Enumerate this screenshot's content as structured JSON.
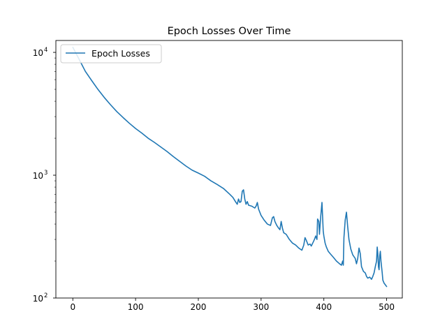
{
  "chart_data": {
    "type": "line",
    "title": "Epoch Losses Over Time",
    "xlabel": "",
    "ylabel": "",
    "xlim": [
      -27,
      525
    ],
    "ylim": [
      100,
      12500
    ],
    "yscale": "log",
    "x_ticks": [
      0,
      100,
      200,
      300,
      400,
      500
    ],
    "y_ticks": [
      {
        "value": 100,
        "base": "10",
        "exp": "2"
      },
      {
        "value": 1000,
        "base": "10",
        "exp": "3"
      },
      {
        "value": 10000,
        "base": "10",
        "exp": "4"
      }
    ],
    "grid": false,
    "legend": {
      "position": "top-left",
      "entries": [
        "Epoch Losses"
      ]
    },
    "colors": {
      "series": "#1f77b4",
      "axes": "#000000",
      "legend_border": "#cccccc"
    },
    "series": [
      {
        "name": "Epoch Losses",
        "points": [
          [
            0,
            11000
          ],
          [
            10,
            8800
          ],
          [
            20,
            7000
          ],
          [
            30,
            5900
          ],
          [
            40,
            5000
          ],
          [
            50,
            4300
          ],
          [
            60,
            3750
          ],
          [
            70,
            3300
          ],
          [
            80,
            2950
          ],
          [
            90,
            2650
          ],
          [
            100,
            2400
          ],
          [
            110,
            2200
          ],
          [
            120,
            2000
          ],
          [
            130,
            1850
          ],
          [
            140,
            1700
          ],
          [
            150,
            1560
          ],
          [
            160,
            1420
          ],
          [
            170,
            1300
          ],
          [
            180,
            1190
          ],
          [
            190,
            1100
          ],
          [
            200,
            1040
          ],
          [
            210,
            980
          ],
          [
            220,
            900
          ],
          [
            230,
            840
          ],
          [
            240,
            780
          ],
          [
            250,
            700
          ],
          [
            255,
            660
          ],
          [
            260,
            600
          ],
          [
            262,
            580
          ],
          [
            264,
            640
          ],
          [
            266,
            600
          ],
          [
            268,
            610
          ],
          [
            270,
            740
          ],
          [
            272,
            760
          ],
          [
            274,
            640
          ],
          [
            276,
            580
          ],
          [
            278,
            610
          ],
          [
            280,
            570
          ],
          [
            285,
            560
          ],
          [
            290,
            540
          ],
          [
            292,
            560
          ],
          [
            294,
            600
          ],
          [
            296,
            530
          ],
          [
            300,
            470
          ],
          [
            305,
            430
          ],
          [
            310,
            400
          ],
          [
            315,
            390
          ],
          [
            318,
            450
          ],
          [
            320,
            460
          ],
          [
            322,
            420
          ],
          [
            325,
            390
          ],
          [
            328,
            370
          ],
          [
            330,
            360
          ],
          [
            332,
            420
          ],
          [
            334,
            370
          ],
          [
            336,
            340
          ],
          [
            340,
            330
          ],
          [
            345,
            300
          ],
          [
            350,
            280
          ],
          [
            355,
            270
          ],
          [
            360,
            255
          ],
          [
            365,
            245
          ],
          [
            368,
            270
          ],
          [
            370,
            310
          ],
          [
            372,
            295
          ],
          [
            375,
            270
          ],
          [
            378,
            275
          ],
          [
            380,
            265
          ],
          [
            383,
            285
          ],
          [
            385,
            300
          ],
          [
            387,
            320
          ],
          [
            389,
            300
          ],
          [
            390,
            440
          ],
          [
            392,
            420
          ],
          [
            393,
            330
          ],
          [
            395,
            460
          ],
          [
            397,
            600
          ],
          [
            399,
            350
          ],
          [
            400,
            320
          ],
          [
            402,
            280
          ],
          [
            404,
            260
          ],
          [
            407,
            240
          ],
          [
            410,
            230
          ],
          [
            415,
            215
          ],
          [
            420,
            200
          ],
          [
            425,
            190
          ],
          [
            428,
            185
          ],
          [
            430,
            200
          ],
          [
            431,
            185
          ],
          [
            432,
            310
          ],
          [
            434,
            430
          ],
          [
            436,
            500
          ],
          [
            438,
            380
          ],
          [
            440,
            300
          ],
          [
            443,
            250
          ],
          [
            446,
            225
          ],
          [
            450,
            210
          ],
          [
            452,
            190
          ],
          [
            454,
            210
          ],
          [
            456,
            255
          ],
          [
            458,
            230
          ],
          [
            460,
            180
          ],
          [
            463,
            165
          ],
          [
            466,
            160
          ],
          [
            468,
            150
          ],
          [
            470,
            145
          ],
          [
            473,
            148
          ],
          [
            476,
            142
          ],
          [
            478,
            150
          ],
          [
            480,
            160
          ],
          [
            482,
            180
          ],
          [
            484,
            200
          ],
          [
            485,
            260
          ],
          [
            486,
            230
          ],
          [
            487,
            180
          ],
          [
            488,
            170
          ],
          [
            489,
            220
          ],
          [
            490,
            240
          ],
          [
            491,
            200
          ],
          [
            493,
            160
          ],
          [
            494,
            140
          ],
          [
            496,
            132
          ],
          [
            498,
            128
          ],
          [
            500,
            124
          ]
        ]
      }
    ]
  }
}
